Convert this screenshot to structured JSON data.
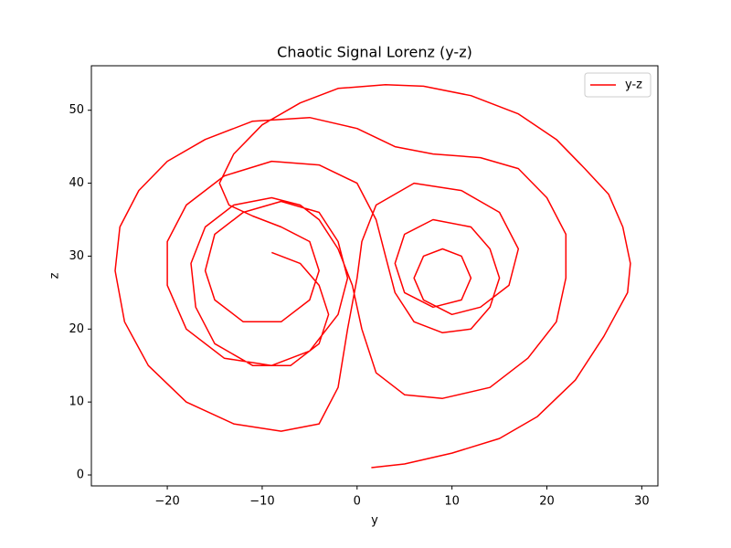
{
  "chart_data": {
    "type": "line",
    "title": "Chaotic Signal Lorenz (y-z)",
    "x_label": "y",
    "y_label": "z",
    "x": [
      1.5,
      5,
      10,
      15,
      19,
      23,
      26,
      28.5,
      28.8,
      28,
      26.5,
      24,
      21,
      17,
      12,
      7,
      3,
      -2,
      -6,
      -10,
      -13,
      -14.5,
      -13.5,
      -11,
      -8,
      -5,
      -4,
      -5,
      -8,
      -12,
      -15,
      -16,
      -15,
      -12,
      -8,
      -4,
      -2,
      -1,
      -2,
      -5,
      -9,
      -14,
      -18,
      -20,
      -20,
      -18,
      -14,
      -9,
      -4,
      0,
      2,
      3,
      4,
      6,
      9,
      12,
      14,
      15,
      14,
      12,
      8,
      5,
      4,
      5,
      8,
      11,
      12,
      11,
      9,
      7,
      6,
      7,
      10,
      13,
      16,
      17,
      15,
      11,
      6,
      2,
      0.5,
      0,
      -1,
      -2,
      -4,
      -8,
      -13,
      -18,
      -22,
      -24.5,
      -25.5,
      -25,
      -23,
      -20,
      -16,
      -11,
      -5,
      0,
      4,
      8,
      13,
      17,
      20,
      22,
      22,
      21,
      18,
      14,
      9,
      5,
      2,
      0.5,
      -0.5,
      -2,
      -4,
      -6,
      -9,
      -13,
      -16,
      -17.5,
      -17,
      -15,
      -11,
      -7,
      -4,
      -3,
      -4,
      -6,
      -9
    ],
    "series": [
      {
        "name": "y-z",
        "color": "#ff0000",
        "values": [
          1,
          1.5,
          3,
          5,
          8,
          13,
          19,
          25,
          29,
          34,
          38.5,
          42,
          46,
          49.5,
          52,
          53.3,
          53.5,
          53,
          51,
          48,
          44,
          40,
          37,
          35.5,
          34,
          32,
          28,
          24,
          21,
          21,
          24,
          28,
          33,
          36,
          37.5,
          36,
          32,
          27,
          22,
          17,
          15,
          16,
          20,
          26,
          32,
          37,
          41,
          43,
          42.5,
          40,
          35,
          30,
          25,
          21,
          19.5,
          20,
          23,
          27,
          31,
          34,
          35,
          33,
          29,
          25,
          23,
          24,
          27,
          30,
          31,
          30,
          27,
          24,
          22,
          23,
          26,
          31,
          36,
          39,
          40,
          37,
          32,
          27,
          20,
          12,
          7,
          6,
          7,
          10,
          15,
          21,
          28,
          34,
          39,
          43,
          46,
          48.5,
          49,
          47.5,
          45,
          44,
          43.5,
          42,
          38,
          33,
          27,
          21,
          16,
          12,
          10.5,
          11,
          14,
          20,
          26,
          31,
          35,
          37,
          38,
          37,
          34,
          29,
          23,
          18,
          15,
          15,
          18,
          22,
          26,
          29,
          30.5
        ]
      }
    ],
    "xlim": [
      -28,
      31.7
    ],
    "ylim": [
      -1.5,
      56.1
    ],
    "xticks": [
      {
        "value": -20,
        "label": "−20"
      },
      {
        "value": -10,
        "label": "−10"
      },
      0,
      10,
      20,
      30
    ],
    "yticks": [
      0,
      10,
      20,
      30,
      40,
      50
    ],
    "legend": "upper right"
  }
}
